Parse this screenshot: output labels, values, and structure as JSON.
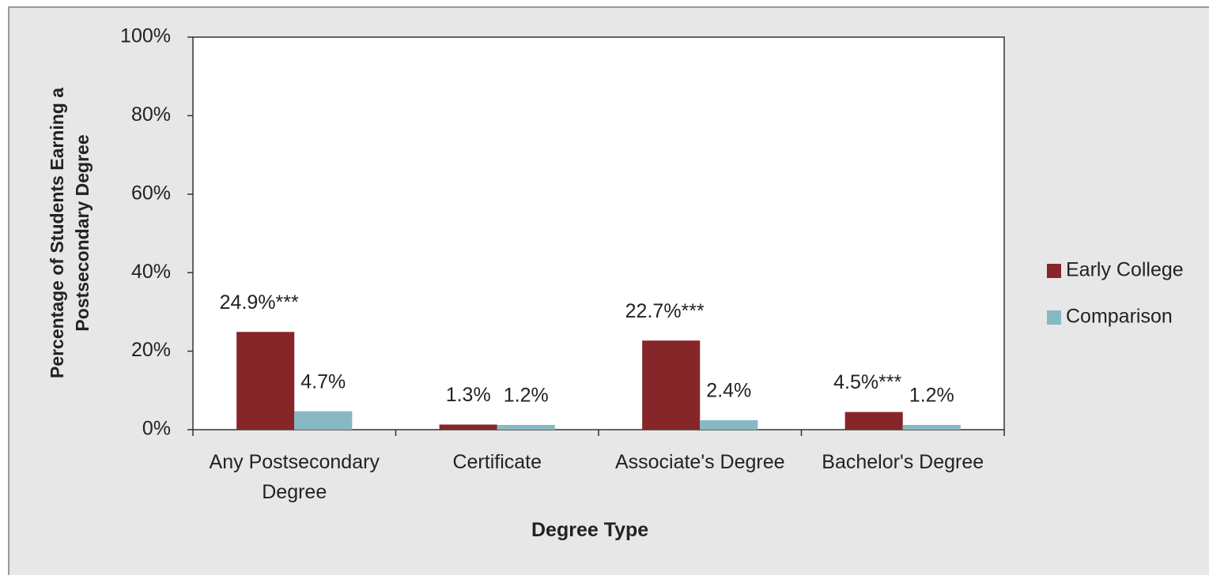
{
  "chart_data": {
    "type": "bar",
    "x_label": "Degree Type",
    "y_label": "Percentage of Students Earning a Postsecondary Degree",
    "categories": [
      "Any Postsecondary Degree",
      "Certificate",
      "Associate's Degree",
      "Bachelor's Degree"
    ],
    "series": [
      {
        "name": "Early College",
        "color": "#862628",
        "values": [
          24.9,
          1.3,
          22.7,
          4.5
        ],
        "value_labels": [
          "24.9%***",
          "1.3%",
          "22.7%***",
          "4.5%***"
        ]
      },
      {
        "name": "Comparison",
        "color": "#86b9c4",
        "values": [
          4.7,
          1.2,
          2.4,
          1.2
        ],
        "value_labels": [
          "4.7%",
          "1.2%",
          "2.4%",
          "1.2%"
        ]
      }
    ],
    "ylim": [
      0,
      100
    ],
    "yticks": [
      {
        "value": 0,
        "label": "0%"
      },
      {
        "value": 20,
        "label": "20%"
      },
      {
        "value": 40,
        "label": "40%"
      },
      {
        "value": 60,
        "label": "60%"
      },
      {
        "value": 80,
        "label": "80%"
      },
      {
        "value": 100,
        "label": "100%"
      }
    ],
    "legend": "right"
  }
}
